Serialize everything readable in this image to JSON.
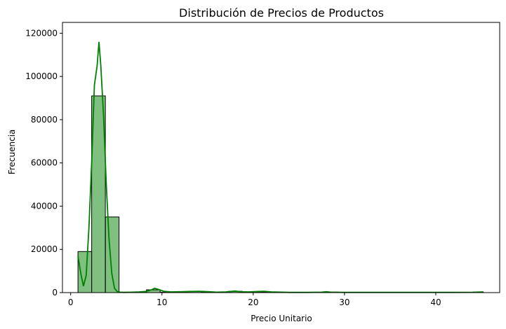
{
  "chart_data": {
    "type": "bar",
    "title": "Distribución de Precios de Productos",
    "xlabel": "Precio Unitario",
    "ylabel": "Frecuencia",
    "xlim": [
      -0.9,
      47.0
    ],
    "ylim": [
      0,
      125000
    ],
    "xticks": [
      0,
      10,
      20,
      30,
      40
    ],
    "yticks": [
      0,
      20000,
      40000,
      60000,
      80000,
      100000,
      120000
    ],
    "grid": false,
    "bar_color": "#008000",
    "bar_fill_opacity": 0.5,
    "bar_edge_color": "#000000",
    "kde_color": "#008000",
    "bins": [
      {
        "x0": 0.8,
        "x1": 2.3,
        "count": 19000
      },
      {
        "x0": 2.3,
        "x1": 3.8,
        "count": 91000
      },
      {
        "x0": 3.8,
        "x1": 5.3,
        "count": 35000
      },
      {
        "x0": 5.3,
        "x1": 6.8,
        "count": 200
      },
      {
        "x0": 6.8,
        "x1": 8.3,
        "count": 150
      },
      {
        "x0": 8.3,
        "x1": 9.8,
        "count": 1300
      },
      {
        "x0": 9.8,
        "x1": 11.3,
        "count": 200
      },
      {
        "x0": 11.3,
        "x1": 12.8,
        "count": 300
      },
      {
        "x0": 12.8,
        "x1": 14.3,
        "count": 500
      },
      {
        "x0": 14.3,
        "x1": 15.8,
        "count": 300
      },
      {
        "x0": 15.8,
        "x1": 17.3,
        "count": 100
      },
      {
        "x0": 17.3,
        "x1": 18.8,
        "count": 600
      },
      {
        "x0": 18.8,
        "x1": 20.3,
        "count": 200
      },
      {
        "x0": 20.3,
        "x1": 21.8,
        "count": 300
      },
      {
        "x0": 21.8,
        "x1": 23.3,
        "count": 150
      },
      {
        "x0": 23.3,
        "x1": 24.8,
        "count": 50
      },
      {
        "x0": 24.8,
        "x1": 26.3,
        "count": 50
      },
      {
        "x0": 26.3,
        "x1": 27.8,
        "count": 50
      },
      {
        "x0": 27.8,
        "x1": 29.3,
        "count": 250
      },
      {
        "x0": 29.3,
        "x1": 30.8,
        "count": 50
      },
      {
        "x0": 30.8,
        "x1": 32.3,
        "count": 50
      },
      {
        "x0": 32.3,
        "x1": 33.8,
        "count": 50
      },
      {
        "x0": 33.8,
        "x1": 35.3,
        "count": 50
      },
      {
        "x0": 35.3,
        "x1": 36.8,
        "count": 50
      },
      {
        "x0": 36.8,
        "x1": 38.3,
        "count": 50
      },
      {
        "x0": 38.3,
        "x1": 39.8,
        "count": 50
      },
      {
        "x0": 39.8,
        "x1": 41.3,
        "count": 50
      },
      {
        "x0": 41.3,
        "x1": 42.8,
        "count": 50
      },
      {
        "x0": 42.8,
        "x1": 44.3,
        "count": 50
      },
      {
        "x0": 44.3,
        "x1": 45.2,
        "count": 300
      }
    ],
    "kde": {
      "x": [
        0.8,
        1.1,
        1.4,
        1.7,
        2.0,
        2.3,
        2.6,
        2.9,
        3.1,
        3.3,
        3.6,
        3.9,
        4.2,
        4.5,
        4.8,
        5.1,
        5.4,
        5.8,
        6.5,
        7.5,
        8.2,
        8.8,
        9.2,
        9.6,
        10.2,
        11.0,
        12.0,
        13.0,
        14.0,
        14.6,
        15.2,
        16.0,
        17.0,
        18.0,
        18.6,
        19.5,
        20.5,
        21.2,
        22.0,
        22.8,
        24.0,
        26.0,
        27.5,
        28.0,
        28.5,
        30.0,
        34.0,
        38.0,
        42.0,
        44.0,
        45.2
      ],
      "y": [
        17000,
        9000,
        3000,
        8000,
        30000,
        60000,
        96000,
        105000,
        116000,
        105000,
        82000,
        50000,
        25000,
        9000,
        2000,
        500,
        200,
        100,
        150,
        300,
        500,
        1200,
        2000,
        1500,
        600,
        300,
        400,
        500,
        600,
        500,
        400,
        200,
        300,
        700,
        400,
        300,
        500,
        600,
        300,
        250,
        100,
        100,
        200,
        400,
        200,
        100,
        100,
        100,
        100,
        150,
        300
      ]
    }
  }
}
